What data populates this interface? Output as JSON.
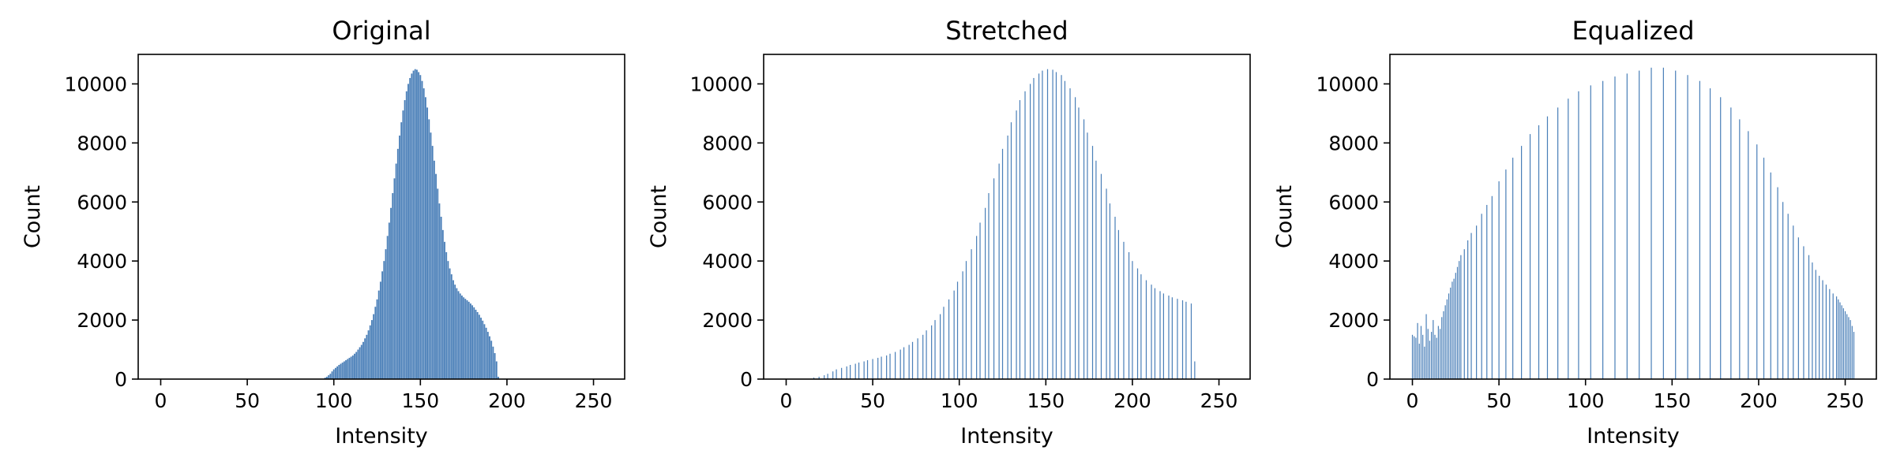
{
  "figure": {
    "bar_color": "#4a7fb8",
    "background": "#ffffff"
  },
  "chart_data": [
    {
      "type": "bar",
      "title": "Original",
      "xlabel": "Intensity",
      "ylabel": "Count",
      "xlim": [
        -13,
        268
      ],
      "ylim": [
        0,
        11000
      ],
      "xticks": [
        "0",
        "50",
        "100",
        "150",
        "200",
        "250"
      ],
      "yticks": [
        "0",
        "2000",
        "4000",
        "6000",
        "8000",
        "10000"
      ],
      "grid": false,
      "legend": "none",
      "x": [
        95,
        96,
        97,
        98,
        99,
        100,
        101,
        102,
        103,
        104,
        105,
        106,
        107,
        108,
        109,
        110,
        111,
        112,
        113,
        114,
        115,
        116,
        117,
        118,
        119,
        120,
        121,
        122,
        123,
        124,
        125,
        126,
        127,
        128,
        129,
        130,
        131,
        132,
        133,
        134,
        135,
        136,
        137,
        138,
        139,
        140,
        141,
        142,
        143,
        144,
        145,
        146,
        147,
        148,
        149,
        150,
        151,
        152,
        153,
        154,
        155,
        156,
        157,
        158,
        159,
        160,
        161,
        162,
        163,
        164,
        165,
        166,
        167,
        168,
        169,
        170,
        171,
        172,
        173,
        174,
        175,
        176,
        177,
        178,
        179,
        180,
        181,
        182,
        183,
        184,
        185,
        186,
        187,
        188,
        189,
        190,
        191,
        192,
        193,
        194,
        195
      ],
      "values": [
        50,
        80,
        130,
        180,
        260,
        330,
        380,
        430,
        480,
        520,
        560,
        600,
        640,
        680,
        720,
        760,
        800,
        860,
        920,
        1000,
        1080,
        1160,
        1260,
        1380,
        1500,
        1650,
        1820,
        2000,
        2200,
        2450,
        2700,
        3000,
        3300,
        3650,
        4000,
        4400,
        4850,
        5300,
        5800,
        6300,
        6800,
        7300,
        7800,
        8250,
        8700,
        9100,
        9450,
        9750,
        10000,
        10200,
        10350,
        10450,
        10500,
        10480,
        10400,
        10300,
        10100,
        9850,
        9550,
        9200,
        8800,
        8350,
        7900,
        7400,
        6950,
        6450,
        5950,
        5500,
        5050,
        4650,
        4300,
        4000,
        3750,
        3550,
        3350,
        3200,
        3080,
        2980,
        2900,
        2830,
        2770,
        2720,
        2670,
        2620,
        2560,
        2500,
        2430,
        2350,
        2270,
        2180,
        2080,
        1980,
        1860,
        1740,
        1600,
        1450,
        1300,
        1100,
        880,
        600,
        80
      ]
    },
    {
      "type": "bar",
      "title": "Stretched",
      "xlabel": "Intensity",
      "ylabel": "Count",
      "xlim": [
        -13,
        268
      ],
      "ylim": [
        0,
        11000
      ],
      "xticks": [
        "0",
        "50",
        "100",
        "150",
        "200",
        "250"
      ],
      "yticks": [
        "0",
        "2000",
        "4000",
        "6000",
        "8000",
        "10000"
      ],
      "grid": false,
      "legend": "none",
      "x": [
        16,
        19,
        22,
        24,
        27,
        29,
        32,
        35,
        37,
        40,
        42,
        45,
        47,
        50,
        53,
        55,
        58,
        60,
        63,
        66,
        68,
        71,
        73,
        76,
        79,
        81,
        84,
        86,
        89,
        91,
        94,
        97,
        99,
        102,
        104,
        107,
        110,
        112,
        115,
        117,
        120,
        123,
        125,
        128,
        130,
        133,
        135,
        138,
        141,
        143,
        146,
        148,
        151,
        154,
        156,
        159,
        161,
        164,
        167,
        169,
        172,
        174,
        177,
        179,
        182,
        185,
        187,
        190,
        192,
        195,
        198,
        200,
        203,
        205,
        208,
        211,
        213,
        216,
        218,
        221,
        223,
        226,
        229,
        231,
        234,
        236
      ],
      "values": [
        50,
        80,
        130,
        180,
        260,
        330,
        380,
        430,
        480,
        520,
        560,
        600,
        640,
        680,
        720,
        760,
        800,
        860,
        920,
        1000,
        1080,
        1160,
        1260,
        1380,
        1500,
        1650,
        1820,
        2000,
        2200,
        2450,
        2700,
        3000,
        3300,
        3650,
        4000,
        4400,
        4850,
        5300,
        5800,
        6300,
        6800,
        7300,
        7800,
        8250,
        8700,
        9100,
        9450,
        9750,
        10000,
        10200,
        10350,
        10450,
        10500,
        10480,
        10400,
        10300,
        10100,
        9850,
        9550,
        9200,
        8800,
        8350,
        7900,
        7400,
        6950,
        6450,
        5950,
        5500,
        5050,
        4650,
        4300,
        4000,
        3750,
        3550,
        3350,
        3200,
        3080,
        2980,
        2900,
        2830,
        2770,
        2720,
        2670,
        2620,
        2560,
        600
      ]
    },
    {
      "type": "bar",
      "title": "Equalized",
      "xlabel": "Intensity",
      "ylabel": "Count",
      "xlim": [
        -13,
        268
      ],
      "ylim": [
        0,
        11000
      ],
      "xticks": [
        "0",
        "50",
        "100",
        "150",
        "200",
        "250"
      ],
      "yticks": [
        "0",
        "2000",
        "4000",
        "6000",
        "8000",
        "10000"
      ],
      "grid": false,
      "legend": "none",
      "x": [
        0,
        1,
        2,
        3,
        4,
        5,
        6,
        7,
        8,
        9,
        10,
        11,
        12,
        13,
        14,
        15,
        16,
        17,
        18,
        19,
        20,
        21,
        22,
        23,
        24,
        25,
        26,
        27,
        28,
        30,
        32,
        34,
        37,
        40,
        43,
        46,
        50,
        54,
        58,
        63,
        68,
        73,
        78,
        84,
        90,
        96,
        103,
        110,
        117,
        124,
        131,
        138,
        145,
        152,
        159,
        166,
        172,
        178,
        184,
        189,
        194,
        199,
        203,
        207,
        211,
        214,
        217,
        220,
        223,
        226,
        229,
        231,
        233,
        235,
        237,
        239,
        241,
        243,
        245,
        246,
        247,
        248,
        249,
        250,
        251,
        252,
        253,
        254,
        255
      ],
      "values": [
        1500,
        1450,
        1400,
        1900,
        1200,
        1800,
        1500,
        1100,
        2200,
        1700,
        1300,
        1600,
        2000,
        1500,
        1400,
        1800,
        1700,
        2100,
        2300,
        2500,
        2700,
        2900,
        3100,
        3300,
        3400,
        3600,
        3800,
        4000,
        4200,
        4400,
        4700,
        4950,
        5200,
        5600,
        5900,
        6200,
        6700,
        7100,
        7500,
        7900,
        8300,
        8600,
        8900,
        9200,
        9500,
        9750,
        9950,
        10100,
        10250,
        10350,
        10450,
        10550,
        10550,
        10450,
        10300,
        10100,
        9850,
        9550,
        9200,
        8800,
        8400,
        7950,
        7500,
        7000,
        6500,
        6000,
        5600,
        5200,
        4800,
        4500,
        4200,
        3950,
        3700,
        3500,
        3350,
        3200,
        3050,
        2900,
        2800,
        2700,
        2600,
        2500,
        2400,
        2300,
        2200,
        2100,
        2000,
        1800,
        1600
      ]
    }
  ]
}
